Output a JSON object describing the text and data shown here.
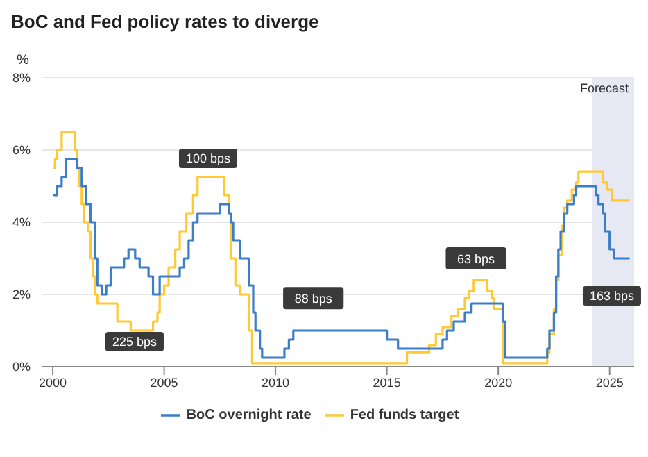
{
  "chart_data": {
    "type": "step",
    "title": "BoC and Fed policy rates to diverge",
    "ylabel": "%",
    "xlim": [
      1999.5,
      2026.1
    ],
    "xticks": [
      2000,
      2005,
      2010,
      2015,
      2020,
      2025
    ],
    "ylim": [
      0,
      8
    ],
    "yticks": [
      {
        "value": 0,
        "label": "0%"
      },
      {
        "value": 2,
        "label": "2%"
      },
      {
        "value": 4,
        "label": "4%"
      },
      {
        "value": 6,
        "label": "6%"
      },
      {
        "value": 8,
        "label": "8%"
      }
    ],
    "grid": "y",
    "legend": "bottom",
    "series": [
      {
        "name": "BoC overnight rate",
        "color": "#3a7dc9",
        "x": [
          2000.0,
          2000.2,
          2000.4,
          2000.6,
          2001.1,
          2001.3,
          2001.5,
          2001.7,
          2001.9,
          2002.0,
          2002.2,
          2002.4,
          2002.6,
          2003.2,
          2003.4,
          2003.7,
          2003.9,
          2004.3,
          2004.5,
          2004.8,
          2005.7,
          2005.9,
          2006.1,
          2006.3,
          2006.5,
          2007.5,
          2007.9,
          2008.0,
          2008.1,
          2008.4,
          2008.8,
          2009.0,
          2009.1,
          2009.3,
          2009.4,
          2010.4,
          2010.6,
          2010.8,
          2015.0,
          2015.5,
          2017.5,
          2017.7,
          2018.0,
          2018.5,
          2018.8,
          2020.2,
          2020.3,
          2022.2,
          2022.3,
          2022.5,
          2022.6,
          2022.7,
          2022.8,
          2022.95,
          2023.1,
          2023.4,
          2023.5,
          2024.4,
          2024.5,
          2024.7,
          2024.8,
          2025.0,
          2025.2,
          2025.9
        ],
        "values": [
          4.75,
          5.0,
          5.25,
          5.75,
          5.5,
          5.0,
          4.5,
          4.0,
          3.0,
          2.25,
          2.0,
          2.25,
          2.75,
          3.0,
          3.25,
          3.0,
          2.75,
          2.5,
          2.0,
          2.5,
          2.75,
          3.0,
          3.5,
          4.0,
          4.25,
          4.5,
          4.25,
          4.0,
          3.5,
          3.0,
          2.25,
          1.5,
          1.0,
          0.5,
          0.25,
          0.5,
          0.75,
          1.0,
          0.75,
          0.5,
          0.75,
          1.0,
          1.25,
          1.5,
          1.75,
          1.25,
          0.25,
          0.5,
          1.0,
          1.5,
          2.5,
          3.25,
          3.75,
          4.25,
          4.5,
          4.75,
          5.0,
          4.75,
          4.5,
          4.25,
          3.75,
          3.25,
          3.0,
          3.0
        ]
      },
      {
        "name": "Fed funds target",
        "color": "#ffc933",
        "x": [
          2000.0,
          2000.1,
          2000.2,
          2000.4,
          2001.0,
          2001.1,
          2001.2,
          2001.3,
          2001.4,
          2001.6,
          2001.7,
          2001.8,
          2001.9,
          2002.0,
          2002.9,
          2003.5,
          2004.5,
          2004.7,
          2004.8,
          2005.0,
          2005.2,
          2005.5,
          2005.7,
          2006.0,
          2006.3,
          2006.5,
          2007.7,
          2007.9,
          2008.0,
          2008.2,
          2008.4,
          2008.8,
          2008.95,
          2015.9,
          2016.9,
          2017.2,
          2017.5,
          2017.9,
          2018.2,
          2018.5,
          2018.7,
          2018.9,
          2019.5,
          2019.7,
          2019.8,
          2020.2,
          2022.2,
          2022.3,
          2022.5,
          2022.6,
          2022.7,
          2022.85,
          2022.95,
          2023.1,
          2023.3,
          2023.5,
          2023.6,
          2024.7,
          2024.9,
          2025.1,
          2025.9
        ],
        "values": [
          5.5,
          5.75,
          6.0,
          6.5,
          6.0,
          5.5,
          5.0,
          4.5,
          4.0,
          3.75,
          3.0,
          2.5,
          2.0,
          1.75,
          1.25,
          1.0,
          1.25,
          1.5,
          2.0,
          2.25,
          2.75,
          3.25,
          3.75,
          4.25,
          4.75,
          5.25,
          4.75,
          4.25,
          3.0,
          2.25,
          2.0,
          1.0,
          0.1,
          0.4,
          0.6,
          0.9,
          1.1,
          1.4,
          1.6,
          1.9,
          2.1,
          2.4,
          2.1,
          1.9,
          1.6,
          0.1,
          0.4,
          0.9,
          1.6,
          2.4,
          3.1,
          3.9,
          4.4,
          4.6,
          4.9,
          5.1,
          5.4,
          5.1,
          4.9,
          4.6,
          4.6
        ]
      }
    ],
    "bands": [
      {
        "axis": "x",
        "from": 2024.2,
        "to": 2026.1,
        "label": "Forecast",
        "color": "#e6e8f4"
      }
    ],
    "annotations": [
      "100 bps",
      "225 bps",
      {
        "text": "88 bps",
        "x": 2011.7,
        "y": 1.9
      },
      {
        "text": "63 bps",
        "x": 2019.0,
        "y": 3.0
      },
      "163 bps"
    ]
  }
}
